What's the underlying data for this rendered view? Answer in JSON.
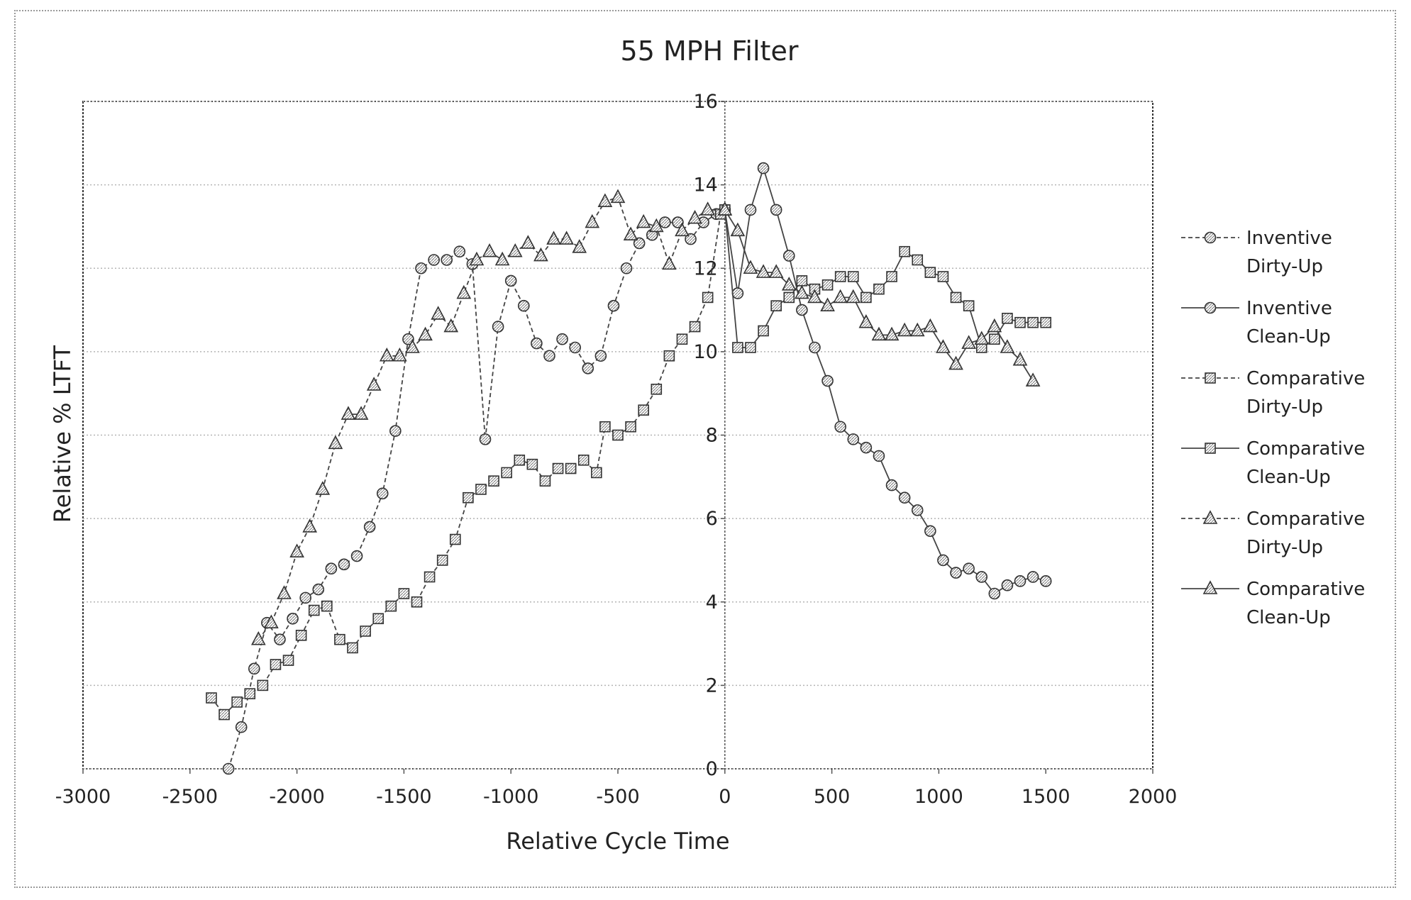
{
  "chart_data": {
    "type": "line",
    "title": "55 MPH Filter",
    "xlabel": "Relative Cycle Time",
    "ylabel": "Relative % LTFT",
    "xlim": [
      -3000,
      2000
    ],
    "ylim": [
      0,
      16
    ],
    "xticks": [
      -3000,
      -2500,
      -2000,
      -1500,
      -1000,
      -500,
      0,
      500,
      1000,
      1500,
      2000
    ],
    "yticks": [
      0,
      2,
      4,
      6,
      8,
      10,
      12,
      14,
      16
    ],
    "xtick_labels": [
      "-3000",
      "-2500",
      "-2000",
      "-1500",
      "-1000",
      "-500",
      "0",
      "500",
      "1000",
      "1500",
      "2000"
    ],
    "ytick_labels": [
      "0",
      "2",
      "4",
      "6",
      "8",
      "10",
      "12",
      "14",
      "16"
    ],
    "grid": "horizontal dotted",
    "legend_position": "right",
    "series": [
      {
        "name": "Inventive Dirty-Up",
        "marker": "circle",
        "line": "dashed",
        "points": [
          [
            -2320,
            0.0
          ],
          [
            -2260,
            1.0
          ],
          [
            -2200,
            2.4
          ],
          [
            -2140,
            3.5
          ],
          [
            -2080,
            3.1
          ],
          [
            -2020,
            3.6
          ],
          [
            -1960,
            4.1
          ],
          [
            -1900,
            4.3
          ],
          [
            -1840,
            4.8
          ],
          [
            -1780,
            4.9
          ],
          [
            -1720,
            5.1
          ],
          [
            -1660,
            5.8
          ],
          [
            -1600,
            6.6
          ],
          [
            -1540,
            8.1
          ],
          [
            -1480,
            10.3
          ],
          [
            -1420,
            12.0
          ],
          [
            -1360,
            12.2
          ],
          [
            -1300,
            12.2
          ],
          [
            -1240,
            12.4
          ],
          [
            -1180,
            12.1
          ],
          [
            -1120,
            7.9
          ],
          [
            -1060,
            10.6
          ],
          [
            -1000,
            11.7
          ],
          [
            -940,
            11.1
          ],
          [
            -880,
            10.2
          ],
          [
            -820,
            9.9
          ],
          [
            -760,
            10.3
          ],
          [
            -700,
            10.1
          ],
          [
            -640,
            9.6
          ],
          [
            -580,
            9.9
          ],
          [
            -520,
            11.1
          ],
          [
            -460,
            12.0
          ],
          [
            -400,
            12.6
          ],
          [
            -340,
            12.8
          ],
          [
            -280,
            13.1
          ],
          [
            -220,
            13.1
          ],
          [
            -160,
            12.7
          ],
          [
            -100,
            13.1
          ],
          [
            -40,
            13.3
          ],
          [
            0,
            13.4
          ]
        ]
      },
      {
        "name": "Inventive Clean-Up",
        "marker": "circle",
        "line": "solid",
        "points": [
          [
            0,
            13.4
          ],
          [
            60,
            11.4
          ],
          [
            120,
            13.4
          ],
          [
            180,
            14.4
          ],
          [
            240,
            13.4
          ],
          [
            300,
            12.3
          ],
          [
            360,
            11.0
          ],
          [
            420,
            10.1
          ],
          [
            480,
            9.3
          ],
          [
            540,
            8.2
          ],
          [
            600,
            7.9
          ],
          [
            660,
            7.7
          ],
          [
            720,
            7.5
          ],
          [
            780,
            6.8
          ],
          [
            840,
            6.5
          ],
          [
            900,
            6.2
          ],
          [
            960,
            5.7
          ],
          [
            1020,
            5.0
          ],
          [
            1080,
            4.7
          ],
          [
            1140,
            4.8
          ],
          [
            1200,
            4.6
          ],
          [
            1260,
            4.2
          ],
          [
            1320,
            4.4
          ],
          [
            1380,
            4.5
          ],
          [
            1440,
            4.6
          ],
          [
            1500,
            4.5
          ]
        ]
      },
      {
        "name": "Comparative Dirty-Up",
        "marker": "square",
        "line": "dashed",
        "points": [
          [
            -2400,
            1.7
          ],
          [
            -2340,
            1.3
          ],
          [
            -2280,
            1.6
          ],
          [
            -2220,
            1.8
          ],
          [
            -2160,
            2.0
          ],
          [
            -2100,
            2.5
          ],
          [
            -2040,
            2.6
          ],
          [
            -1980,
            3.2
          ],
          [
            -1920,
            3.8
          ],
          [
            -1860,
            3.9
          ],
          [
            -1800,
            3.1
          ],
          [
            -1740,
            2.9
          ],
          [
            -1680,
            3.3
          ],
          [
            -1620,
            3.6
          ],
          [
            -1560,
            3.9
          ],
          [
            -1500,
            4.2
          ],
          [
            -1440,
            4.0
          ],
          [
            -1380,
            4.6
          ],
          [
            -1320,
            5.0
          ],
          [
            -1260,
            5.5
          ],
          [
            -1200,
            6.5
          ],
          [
            -1140,
            6.7
          ],
          [
            -1080,
            6.9
          ],
          [
            -1020,
            7.1
          ],
          [
            -960,
            7.4
          ],
          [
            -900,
            7.3
          ],
          [
            -840,
            6.9
          ],
          [
            -780,
            7.2
          ],
          [
            -720,
            7.2
          ],
          [
            -660,
            7.4
          ],
          [
            -600,
            7.1
          ],
          [
            -560,
            8.2
          ],
          [
            -500,
            8.0
          ],
          [
            -440,
            8.2
          ],
          [
            -380,
            8.6
          ],
          [
            -320,
            9.1
          ],
          [
            -260,
            9.9
          ],
          [
            -200,
            10.3
          ],
          [
            -140,
            10.6
          ],
          [
            -80,
            11.3
          ],
          [
            -20,
            13.3
          ],
          [
            0,
            13.4
          ]
        ]
      },
      {
        "name": "Comparative Clean-Up",
        "marker": "square",
        "line": "solid",
        "points": [
          [
            0,
            13.4
          ],
          [
            60,
            10.1
          ],
          [
            120,
            10.1
          ],
          [
            180,
            10.5
          ],
          [
            240,
            11.1
          ],
          [
            300,
            11.3
          ],
          [
            360,
            11.7
          ],
          [
            420,
            11.5
          ],
          [
            480,
            11.6
          ],
          [
            540,
            11.8
          ],
          [
            600,
            11.8
          ],
          [
            660,
            11.3
          ],
          [
            720,
            11.5
          ],
          [
            780,
            11.8
          ],
          [
            840,
            12.4
          ],
          [
            900,
            12.2
          ],
          [
            960,
            11.9
          ],
          [
            1020,
            11.8
          ],
          [
            1080,
            11.3
          ],
          [
            1140,
            11.1
          ],
          [
            1200,
            10.1
          ],
          [
            1260,
            10.3
          ],
          [
            1320,
            10.8
          ],
          [
            1380,
            10.7
          ],
          [
            1440,
            10.7
          ],
          [
            1500,
            10.7
          ]
        ]
      },
      {
        "name": "Comparative Dirty-Up",
        "marker": "triangle",
        "line": "dashed",
        "points": [
          [
            -2180,
            3.1
          ],
          [
            -2120,
            3.5
          ],
          [
            -2060,
            4.2
          ],
          [
            -2000,
            5.2
          ],
          [
            -1940,
            5.8
          ],
          [
            -1880,
            6.7
          ],
          [
            -1820,
            7.8
          ],
          [
            -1760,
            8.5
          ],
          [
            -1700,
            8.5
          ],
          [
            -1640,
            9.2
          ],
          [
            -1580,
            9.9
          ],
          [
            -1520,
            9.9
          ],
          [
            -1460,
            10.1
          ],
          [
            -1400,
            10.4
          ],
          [
            -1340,
            10.9
          ],
          [
            -1280,
            10.6
          ],
          [
            -1220,
            11.4
          ],
          [
            -1160,
            12.2
          ],
          [
            -1100,
            12.4
          ],
          [
            -1040,
            12.2
          ],
          [
            -980,
            12.4
          ],
          [
            -920,
            12.6
          ],
          [
            -860,
            12.3
          ],
          [
            -800,
            12.7
          ],
          [
            -740,
            12.7
          ],
          [
            -680,
            12.5
          ],
          [
            -620,
            13.1
          ],
          [
            -560,
            13.6
          ],
          [
            -500,
            13.7
          ],
          [
            -440,
            12.8
          ],
          [
            -380,
            13.1
          ],
          [
            -320,
            13.0
          ],
          [
            -260,
            12.1
          ],
          [
            -200,
            12.9
          ],
          [
            -140,
            13.2
          ],
          [
            -80,
            13.4
          ],
          [
            0,
            13.4
          ]
        ]
      },
      {
        "name": "Comparative Clean-Up",
        "marker": "triangle",
        "line": "solid",
        "points": [
          [
            0,
            13.4
          ],
          [
            60,
            12.9
          ],
          [
            120,
            12.0
          ],
          [
            180,
            11.9
          ],
          [
            240,
            11.9
          ],
          [
            300,
            11.6
          ],
          [
            360,
            11.4
          ],
          [
            420,
            11.3
          ],
          [
            480,
            11.1
          ],
          [
            540,
            11.3
          ],
          [
            600,
            11.3
          ],
          [
            660,
            10.7
          ],
          [
            720,
            10.4
          ],
          [
            780,
            10.4
          ],
          [
            840,
            10.5
          ],
          [
            900,
            10.5
          ],
          [
            960,
            10.6
          ],
          [
            1020,
            10.1
          ],
          [
            1080,
            9.7
          ],
          [
            1140,
            10.2
          ],
          [
            1200,
            10.3
          ],
          [
            1260,
            10.6
          ],
          [
            1320,
            10.1
          ],
          [
            1380,
            9.8
          ],
          [
            1440,
            9.3
          ]
        ]
      }
    ]
  },
  "legend": {
    "items": [
      {
        "line1": "Inventive",
        "line2": "Dirty-Up"
      },
      {
        "line1": "Inventive",
        "line2": "Clean-Up"
      },
      {
        "line1": "Comparative",
        "line2": "Dirty-Up"
      },
      {
        "line1": "Comparative",
        "line2": "Clean-Up"
      },
      {
        "line1": "Comparative",
        "line2": "Dirty-Up"
      },
      {
        "line1": "Comparative",
        "line2": "Clean-Up"
      }
    ]
  },
  "colors": {
    "line": "#444444",
    "marker_fill": "#ffffff",
    "grid": "#b5b5b5",
    "text": "#222222"
  }
}
